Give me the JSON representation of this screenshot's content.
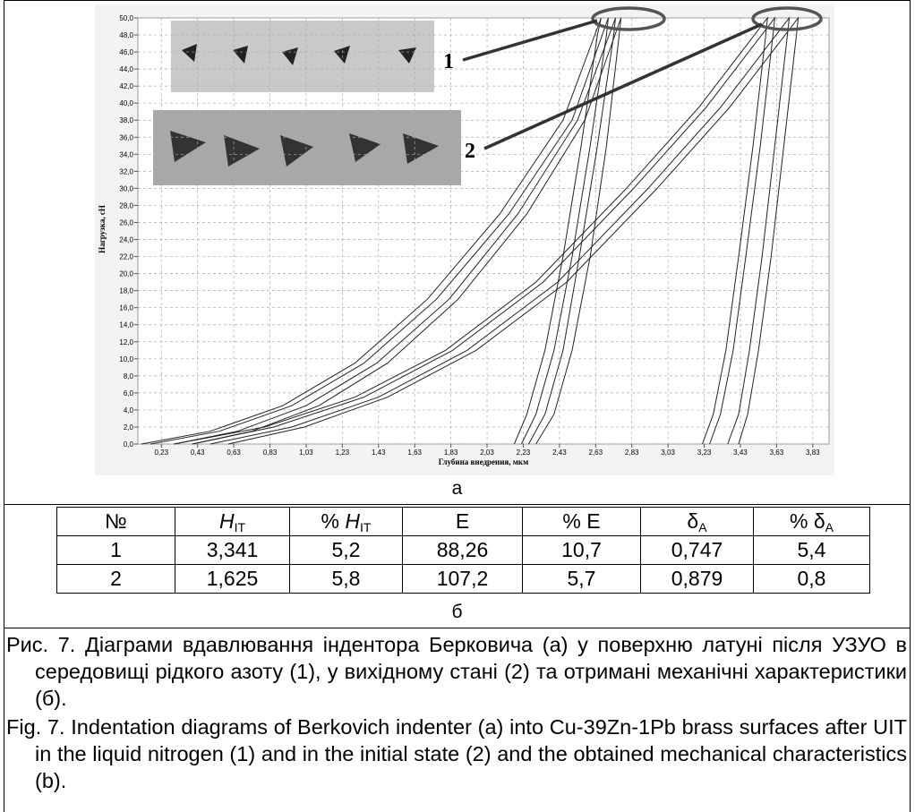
{
  "chart_data": {
    "type": "line",
    "y_label": "Нагрузка, сН",
    "x_label": "Глубина внедрения, мкм",
    "annotations": [
      "1",
      "2"
    ],
    "xlim": [
      0.1,
      3.92
    ],
    "ylim": [
      0,
      50
    ],
    "grid": true,
    "xticks": [
      {
        "value": 0.23,
        "label": "0,23"
      },
      {
        "value": 0.43,
        "label": "0,43"
      },
      {
        "value": 0.63,
        "label": "0,63"
      },
      {
        "value": 0.83,
        "label": "0,83"
      },
      {
        "value": 1.03,
        "label": "1,03"
      },
      {
        "value": 1.23,
        "label": "1,23"
      },
      {
        "value": 1.43,
        "label": "1,43"
      },
      {
        "value": 1.63,
        "label": "1,63"
      },
      {
        "value": 1.83,
        "label": "1,83"
      },
      {
        "value": 2.03,
        "label": "2,03"
      },
      {
        "value": 2.23,
        "label": "2,23"
      },
      {
        "value": 2.43,
        "label": "2,43"
      },
      {
        "value": 2.63,
        "label": "2,63"
      },
      {
        "value": 2.83,
        "label": "2,83"
      },
      {
        "value": 3.03,
        "label": "3,03"
      },
      {
        "value": 3.23,
        "label": "3,23"
      },
      {
        "value": 3.43,
        "label": "3,43"
      },
      {
        "value": 3.63,
        "label": "3,63"
      },
      {
        "value": 3.83,
        "label": "3,83"
      }
    ],
    "yticks": [
      {
        "value": 0,
        "label": "0,0"
      },
      {
        "value": 2,
        "label": "2,0"
      },
      {
        "value": 4,
        "label": "4,0"
      },
      {
        "value": 6,
        "label": "6,0"
      },
      {
        "value": 8,
        "label": "8,0"
      },
      {
        "value": 10,
        "label": "10,0"
      },
      {
        "value": 12,
        "label": "12,0"
      },
      {
        "value": 14,
        "label": "14,0"
      },
      {
        "value": 16,
        "label": "16,0"
      },
      {
        "value": 18,
        "label": "18,0"
      },
      {
        "value": 20,
        "label": "20,0"
      },
      {
        "value": 22,
        "label": "22,0"
      },
      {
        "value": 24,
        "label": "24,0"
      },
      {
        "value": 26,
        "label": "26,0"
      },
      {
        "value": 28,
        "label": "28,0"
      },
      {
        "value": 30,
        "label": "30,0"
      },
      {
        "value": 32,
        "label": "32,0"
      },
      {
        "value": 34,
        "label": "34,0"
      },
      {
        "value": 36,
        "label": "36,0"
      },
      {
        "value": 38,
        "label": "38,0"
      },
      {
        "value": 40,
        "label": "40,0"
      },
      {
        "value": 42,
        "label": "42,0"
      },
      {
        "value": 44,
        "label": "44,0"
      },
      {
        "value": 46,
        "label": "46,0"
      },
      {
        "value": 48,
        "label": "48,0"
      },
      {
        "value": 50,
        "label": "50,0"
      }
    ],
    "series": [
      {
        "color": "#222",
        "x": [
          0.12,
          0.5,
          0.9,
          1.3,
          1.7,
          2.1,
          2.45,
          2.66,
          2.64,
          2.55,
          2.45,
          2.35,
          2.25,
          2.18
        ],
        "values": [
          0,
          1.5,
          4.5,
          9.5,
          17,
          27,
          38,
          50,
          48,
          35,
          22,
          11,
          3.5,
          0
        ]
      },
      {
        "color": "#222",
        "x": [
          0.17,
          0.55,
          0.95,
          1.35,
          1.75,
          2.15,
          2.5,
          2.7,
          2.69,
          2.6,
          2.5,
          2.4,
          2.3,
          2.22
        ],
        "values": [
          0,
          1.5,
          4.5,
          9.5,
          17,
          27,
          38,
          50,
          48,
          35,
          22,
          11,
          3.5,
          0
        ]
      },
      {
        "color": "#222",
        "x": [
          0.3,
          0.65,
          1.03,
          1.42,
          1.82,
          2.2,
          2.53,
          2.74,
          2.73,
          2.64,
          2.54,
          2.45,
          2.35,
          2.26
        ],
        "values": [
          0,
          1.5,
          4.5,
          9.5,
          17,
          27,
          38,
          50,
          48,
          35,
          22,
          11,
          3.5,
          0
        ]
      },
      {
        "color": "#222",
        "x": [
          0.4,
          0.73,
          1.1,
          1.48,
          1.87,
          2.25,
          2.57,
          2.77,
          2.76,
          2.69,
          2.6,
          2.5,
          2.4,
          2.3
        ],
        "values": [
          0,
          1.5,
          4.5,
          9.5,
          17,
          27,
          38,
          50,
          48,
          35,
          22,
          11,
          3.5,
          0
        ]
      },
      {
        "color": "#222",
        "x": [
          0.3,
          0.8,
          1.3,
          1.8,
          2.3,
          2.8,
          3.2,
          3.58,
          3.57,
          3.5,
          3.42,
          3.35,
          3.28,
          3.22
        ],
        "values": [
          0,
          2,
          5.5,
          11,
          19,
          30,
          39.5,
          50,
          48,
          35,
          22,
          11,
          3.5,
          0
        ]
      },
      {
        "color": "#222",
        "x": [
          0.4,
          0.85,
          1.35,
          1.84,
          2.34,
          2.84,
          3.24,
          3.62,
          3.61,
          3.54,
          3.46,
          3.39,
          3.32,
          3.26
        ],
        "values": [
          0,
          2,
          5.5,
          11,
          19,
          30,
          39.5,
          50,
          48,
          35,
          22,
          11,
          3.5,
          0
        ]
      },
      {
        "color": "#222",
        "x": [
          0.5,
          0.95,
          1.43,
          1.92,
          2.42,
          2.92,
          3.32,
          3.7,
          3.69,
          3.62,
          3.55,
          3.48,
          3.42,
          3.36
        ],
        "values": [
          0,
          2,
          5.5,
          11,
          19,
          30,
          39.5,
          50,
          48,
          35,
          22,
          11,
          3.5,
          0
        ]
      },
      {
        "color": "#222",
        "x": [
          0.6,
          1.02,
          1.48,
          1.97,
          2.47,
          2.97,
          3.37,
          3.75,
          3.74,
          3.67,
          3.6,
          3.53,
          3.47,
          3.42
        ],
        "values": [
          0,
          2,
          5.5,
          11,
          19,
          30,
          39.5,
          50,
          48,
          35,
          22,
          11,
          3.5,
          0
        ]
      }
    ]
  },
  "panel_a": "а",
  "panel_b": "б",
  "table": {
    "header": [
      [
        "№"
      ],
      [
        "H",
        "IT"
      ],
      [
        "% ",
        "H",
        "IT"
      ],
      [
        "E"
      ],
      [
        "% E"
      ],
      [
        "δ",
        "A"
      ],
      [
        "% δ",
        "A"
      ]
    ],
    "rows": [
      [
        "1",
        "3,341",
        "5,2",
        "88,26",
        "10,7",
        "0,747",
        "5,4"
      ],
      [
        "2",
        "1,625",
        "5,8",
        "107,2",
        "5,7",
        "0,879",
        "0,8"
      ]
    ]
  },
  "caption_uk": "Рис. 7. Діаграми вдавлювання індентора Берковича (а) у поверхню латуні після УЗУО в середовищі рідкого азоту (1), у вихідному стані (2) та отримані механічні характеристики (б).",
  "caption_en": "Fig. 7. Indentation diagrams of Berkovich indenter (a) into Cu-39Zn-1Pb brass surfaces after UIT in the liquid nitrogen (1) and in the initial state (2) and the obtained mechanical characteristics (b)."
}
